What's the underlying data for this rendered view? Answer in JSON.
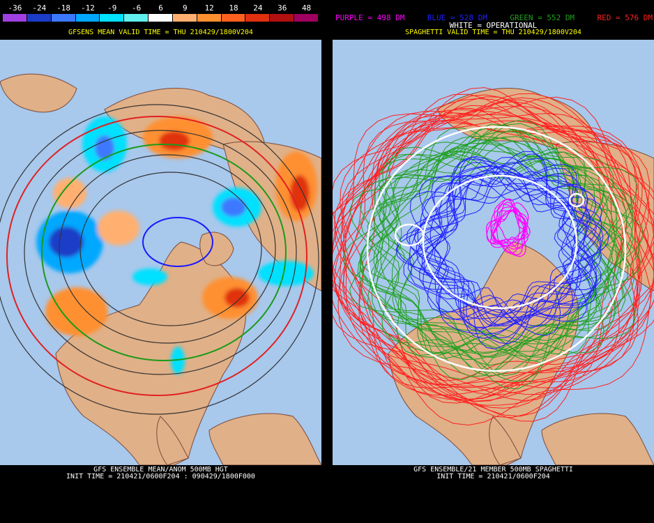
{
  "left": {
    "scale": {
      "labels": [
        "-36",
        "-24",
        "-18",
        "-12",
        "-9",
        "-6",
        "6",
        "9",
        "12",
        "18",
        "24",
        "36",
        "48"
      ],
      "colors": [
        "#a040e0",
        "#1a3cc8",
        "#3c78ff",
        "#00a8ff",
        "#00e0ff",
        "#60f0f0",
        "#ffffff",
        "#ffb070",
        "#ff9030",
        "#ff6020",
        "#e03010",
        "#b01010",
        "#a00060"
      ]
    },
    "valid_time": "GFSENS MEAN VALID TIME = THU 210429/1800V204",
    "caption_line1": "GFS ENSEMBLE MEAN/ANOM 500MB HGT",
    "caption_line2": "INIT TIME = 210421/0600F204 : 090429/1800F000"
  },
  "right": {
    "legend": [
      {
        "text": "PURPLE = 498 DM",
        "color": "#ff00ff"
      },
      {
        "text": "BLUE = 528 DM",
        "color": "#2020ff"
      },
      {
        "text": "GREEN = 552 DM",
        "color": "#20a020"
      },
      {
        "text": "RED = 576 DM",
        "color": "#ff2020"
      }
    ],
    "operational": "WHITE = OPERATIONAL",
    "valid_time": "SPAGHETTI VALID TIME = THU 210429/1800V204",
    "caption_line1": "GFS ENSEMBLE/21 MEMBER 500MB SPAGHETTI",
    "caption_line2": "INIT TIME = 210421/0600F204"
  },
  "colors": {
    "ocean": "#a8c8ec",
    "land": "#e0b088",
    "border": "#7a4a3a",
    "grid": "#d8e4f4"
  }
}
